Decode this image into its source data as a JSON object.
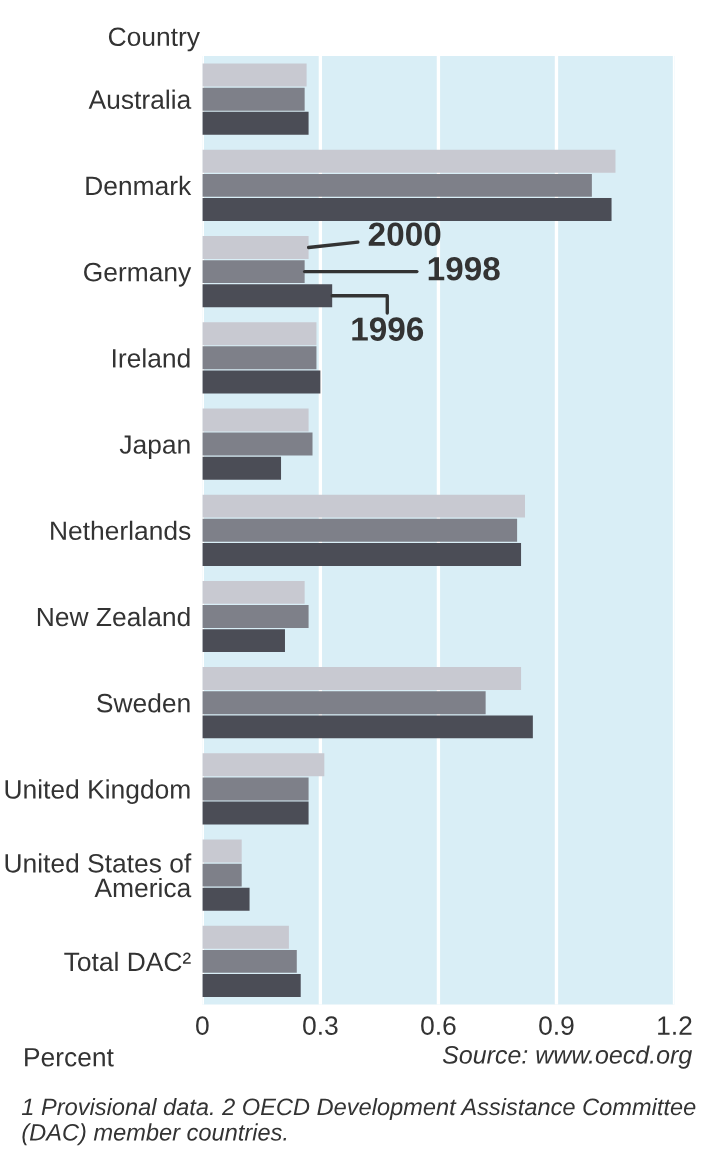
{
  "chart_data": {
    "type": "bar",
    "orientation": "horizontal",
    "ylabel": "Country",
    "xlabel": "Percent",
    "categories": [
      "Australia",
      "Denmark",
      "Germany",
      "Ireland",
      "Japan",
      "Netherlands",
      "New Zealand",
      "Sweden",
      "United Kingdom",
      "United States of\nAmerica",
      "Total DAC²"
    ],
    "series": [
      {
        "name": "2000",
        "color": "#c8c9d1",
        "values": [
          0.265,
          1.05,
          0.27,
          0.29,
          0.27,
          0.82,
          0.26,
          0.81,
          0.31,
          0.1,
          0.22
        ]
      },
      {
        "name": "1998",
        "color": "#7e8089",
        "values": [
          0.26,
          0.99,
          0.26,
          0.29,
          0.28,
          0.8,
          0.27,
          0.72,
          0.27,
          0.1,
          0.24
        ]
      },
      {
        "name": "1996",
        "color": "#4b4d56",
        "values": [
          0.27,
          1.04,
          0.33,
          0.3,
          0.2,
          0.81,
          0.21,
          0.84,
          0.27,
          0.12,
          0.25
        ]
      }
    ],
    "xlim": [
      0,
      1.2
    ],
    "xticks": [
      0,
      0.3,
      0.6,
      0.9,
      1.2
    ],
    "grid": "x",
    "annotations": [
      "Source: www.oecd.org",
      "1 Provisional data. 2 OECD Development Assistance Committee (DAC) member countries."
    ]
  }
}
